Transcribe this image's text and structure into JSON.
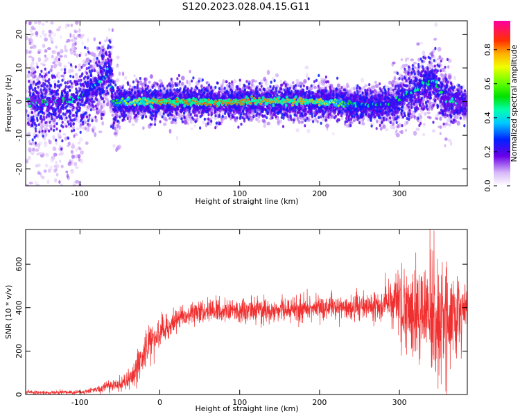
{
  "figure": {
    "title": "S120.2023.028.04.15.G11"
  },
  "chart_data": [
    {
      "type": "heatmap",
      "xlabel": "Height of straight line (km)",
      "ylabel": "Frequency (Hz)",
      "xlim": [
        -168,
        385
      ],
      "ylim": [
        -25,
        24
      ],
      "xticks": [
        -100,
        0,
        100,
        200,
        300
      ],
      "yticks": [
        -20,
        -10,
        0,
        10,
        20
      ],
      "colorbar": {
        "label": "Normalized spectral amplitude",
        "range": [
          0,
          0.97
        ],
        "ticks": [
          0.0,
          0.2,
          0.4,
          0.6,
          0.8
        ],
        "colormap": "gist_ncar-like (white-violet-blue-cyan-green-yellow-orange-red-magenta)"
      },
      "ridge": {
        "description": "peak frequency track",
        "x": [
          -168,
          -150,
          -120,
          -100,
          -90,
          -80,
          -70,
          -62,
          -58,
          -50,
          -40,
          0,
          100,
          200,
          250,
          290,
          310,
          330,
          345,
          355,
          365,
          385
        ],
        "freq": [
          0,
          0,
          0,
          1,
          3,
          5,
          7,
          10,
          -1,
          0,
          0,
          0,
          0,
          0,
          -1,
          -1,
          2,
          5,
          6,
          1,
          0,
          -1
        ],
        "amplitude": [
          0.3,
          0.3,
          0.35,
          0.4,
          0.45,
          0.45,
          0.45,
          0.45,
          0.55,
          0.6,
          0.7,
          0.85,
          0.85,
          0.8,
          0.5,
          0.4,
          0.45,
          0.45,
          0.45,
          0.35,
          0.3,
          0.3
        ]
      }
    },
    {
      "type": "line",
      "xlabel": "Height of straight line (km)",
      "ylabel": "SNR (10 * v/v)",
      "xlim": [
        -168,
        385
      ],
      "ylim": [
        0,
        760
      ],
      "xticks": [
        -100,
        0,
        100,
        200,
        300
      ],
      "yticks": [
        0,
        200,
        400,
        600
      ],
      "series": [
        {
          "color": "#f03030",
          "envelope_x": [
            -168,
            -100,
            -80,
            -60,
            -45,
            -35,
            -20,
            -10,
            0,
            10,
            25,
            60,
            100,
            150,
            200,
            240,
            270,
            290,
            310,
            330,
            345,
            360,
            385
          ],
          "envelope_mean": [
            8,
            10,
            20,
            40,
            50,
            80,
            180,
            250,
            280,
            300,
            360,
            380,
            390,
            390,
            400,
            400,
            410,
            420,
            380,
            360,
            340,
            360,
            380
          ],
          "envelope_spread": [
            8,
            8,
            12,
            25,
            30,
            45,
            70,
            70,
            60,
            50,
            40,
            45,
            45,
            45,
            45,
            50,
            60,
            90,
            170,
            230,
            260,
            200,
            120
          ]
        }
      ]
    }
  ]
}
